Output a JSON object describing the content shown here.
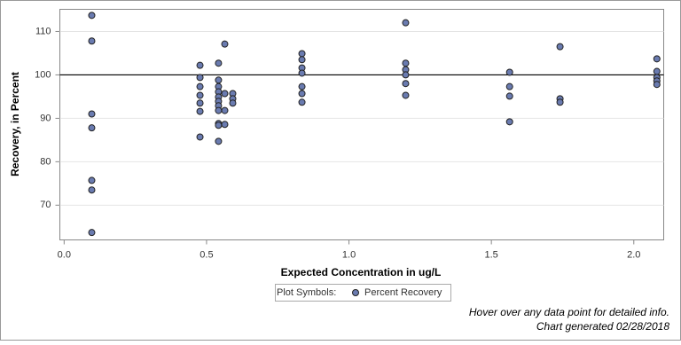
{
  "chart_data": {
    "type": "scatter",
    "x_label": "Expected Concentration in ug/L",
    "y_label": "Recovery, in Percent",
    "x": [
      0.097,
      0.097,
      0.097,
      0.097,
      0.097,
      0.097,
      0.097,
      0.477,
      0.477,
      0.477,
      0.477,
      0.477,
      0.477,
      0.477,
      0.542,
      0.542,
      0.542,
      0.542,
      0.542,
      0.542,
      0.542,
      0.542,
      0.542,
      0.542,
      0.542,
      0.564,
      0.564,
      0.564,
      0.564,
      0.592,
      0.592,
      0.592,
      0.835,
      0.835,
      0.835,
      0.835,
      0.835,
      0.835,
      0.835,
      1.199,
      1.199,
      1.199,
      1.199,
      1.199,
      1.199,
      1.564,
      1.564,
      1.564,
      1.564,
      1.741,
      1.741,
      1.741,
      2.081,
      2.081,
      2.081,
      2.081,
      2.081
    ],
    "series": [
      {
        "name": "Percent Recovery",
        "color": "#6a7bb0",
        "values": [
          113.7,
          107.8,
          91.0,
          87.8,
          75.7,
          73.5,
          63.7,
          102.2,
          99.4,
          97.3,
          95.3,
          93.5,
          91.6,
          85.7,
          102.7,
          98.8,
          97.3,
          96.1,
          94.9,
          93.9,
          92.9,
          91.8,
          88.8,
          88.4,
          84.7,
          107.1,
          95.7,
          91.8,
          88.6,
          95.7,
          94.5,
          93.5,
          104.9,
          103.5,
          101.6,
          100.4,
          97.3,
          95.7,
          93.7,
          112.0,
          102.7,
          101.2,
          100.0,
          98.0,
          95.3,
          100.6,
          97.3,
          95.1,
          89.2,
          106.5,
          94.5,
          93.7,
          103.7,
          100.8,
          99.4,
          98.6,
          97.8
        ]
      }
    ],
    "xlim": [
      -0.015,
      2.105
    ],
    "ylim": [
      62,
      115.1
    ],
    "xticks": [
      {
        "value": 0,
        "label": "0.0"
      },
      0.5,
      {
        "value": 1,
        "label": "1.0"
      },
      1.5,
      {
        "value": 2,
        "label": "2.0"
      }
    ],
    "yticks": [
      70,
      80,
      90,
      100,
      110
    ],
    "grid": true,
    "reference_line": 100,
    "legend_title": "Plot Symbols:",
    "notes": [
      "Hover over any data point for detailed info.",
      "Chart generated 02/28/2018"
    ]
  }
}
